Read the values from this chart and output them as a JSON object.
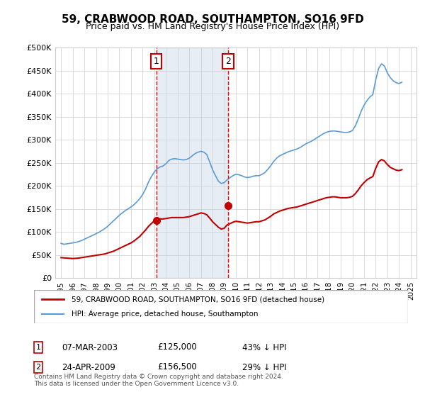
{
  "title": "59, CRABWOOD ROAD, SOUTHAMPTON, SO16 9FD",
  "subtitle": "Price paid vs. HM Land Registry's House Price Index (HPI)",
  "legend_line1": "59, CRABWOOD ROAD, SOUTHAMPTON, SO16 9FD (detached house)",
  "legend_line2": "HPI: Average price, detached house, Southampton",
  "footnote": "Contains HM Land Registry data © Crown copyright and database right 2024.\nThis data is licensed under the Open Government Licence v3.0.",
  "transaction1": {
    "label": "1",
    "date": "07-MAR-2003",
    "price": "£125,000",
    "pct": "43% ↓ HPI"
  },
  "transaction2": {
    "label": "2",
    "date": "24-APR-2009",
    "price": "£156,500",
    "pct": "29% ↓ HPI"
  },
  "hpi_color": "#5b9bd5",
  "price_color": "#c00000",
  "transaction_color": "#c00000",
  "marker1_x": 2003.18,
  "marker1_y": 125000,
  "marker2_x": 2009.32,
  "marker2_y": 156500,
  "vline1_x": 2003.18,
  "vline2_x": 2009.32,
  "shade1_xmin": 2003.18,
  "shade1_xmax": 2009.32,
  "ylim": [
    0,
    500000
  ],
  "xlim": [
    1994.5,
    2025.5
  ],
  "yticks": [
    0,
    50000,
    100000,
    150000,
    200000,
    250000,
    300000,
    350000,
    400000,
    450000,
    500000
  ],
  "ytick_labels": [
    "£0",
    "£50K",
    "£100K",
    "£150K",
    "£200K",
    "£250K",
    "£300K",
    "£350K",
    "£400K",
    "£450K",
    "£500K"
  ],
  "xticks": [
    1995,
    1996,
    1997,
    1998,
    1999,
    2000,
    2001,
    2002,
    2003,
    2004,
    2005,
    2006,
    2007,
    2008,
    2009,
    2010,
    2011,
    2012,
    2013,
    2014,
    2015,
    2016,
    2017,
    2018,
    2019,
    2020,
    2021,
    2022,
    2023,
    2024,
    2025
  ],
  "hpi_data": {
    "years": [
      1995,
      1995.25,
      1995.5,
      1995.75,
      1996,
      1996.25,
      1996.5,
      1996.75,
      1997,
      1997.25,
      1997.5,
      1997.75,
      1998,
      1998.25,
      1998.5,
      1998.75,
      1999,
      1999.25,
      1999.5,
      1999.75,
      2000,
      2000.25,
      2000.5,
      2000.75,
      2001,
      2001.25,
      2001.5,
      2001.75,
      2002,
      2002.25,
      2002.5,
      2002.75,
      2003,
      2003.25,
      2003.5,
      2003.75,
      2004,
      2004.25,
      2004.5,
      2004.75,
      2005,
      2005.25,
      2005.5,
      2005.75,
      2006,
      2006.25,
      2006.5,
      2006.75,
      2007,
      2007.25,
      2007.5,
      2007.75,
      2008,
      2008.25,
      2008.5,
      2008.75,
      2009,
      2009.25,
      2009.5,
      2009.75,
      2010,
      2010.25,
      2010.5,
      2010.75,
      2011,
      2011.25,
      2011.5,
      2011.75,
      2012,
      2012.25,
      2012.5,
      2012.75,
      2013,
      2013.25,
      2013.5,
      2013.75,
      2014,
      2014.25,
      2014.5,
      2014.75,
      2015,
      2015.25,
      2015.5,
      2015.75,
      2016,
      2016.25,
      2016.5,
      2016.75,
      2017,
      2017.25,
      2017.5,
      2017.75,
      2018,
      2018.25,
      2018.5,
      2018.75,
      2019,
      2019.25,
      2019.5,
      2019.75,
      2020,
      2020.25,
      2020.5,
      2020.75,
      2021,
      2021.25,
      2021.5,
      2021.75,
      2022,
      2022.25,
      2022.5,
      2022.75,
      2023,
      2023.25,
      2023.5,
      2023.75,
      2024,
      2024.25
    ],
    "values": [
      75000,
      73000,
      74000,
      75000,
      76000,
      77000,
      79000,
      81000,
      84000,
      87000,
      90000,
      93000,
      96000,
      99000,
      103000,
      107000,
      112000,
      118000,
      124000,
      130000,
      136000,
      141000,
      146000,
      150000,
      154000,
      159000,
      165000,
      172000,
      181000,
      193000,
      208000,
      220000,
      230000,
      237000,
      241000,
      243000,
      248000,
      255000,
      258000,
      259000,
      258000,
      257000,
      256000,
      257000,
      260000,
      265000,
      270000,
      273000,
      275000,
      273000,
      268000,
      252000,
      235000,
      222000,
      210000,
      205000,
      207000,
      213000,
      218000,
      222000,
      225000,
      224000,
      222000,
      219000,
      218000,
      219000,
      221000,
      222000,
      222000,
      225000,
      229000,
      236000,
      244000,
      253000,
      260000,
      265000,
      268000,
      271000,
      274000,
      276000,
      278000,
      280000,
      283000,
      287000,
      291000,
      294000,
      297000,
      301000,
      305000,
      309000,
      313000,
      316000,
      318000,
      319000,
      319000,
      318000,
      317000,
      316000,
      316000,
      317000,
      320000,
      330000,
      345000,
      362000,
      375000,
      385000,
      393000,
      398000,
      430000,
      455000,
      465000,
      460000,
      445000,
      435000,
      428000,
      424000,
      422000,
      425000
    ]
  },
  "price_data": {
    "years": [
      1995,
      1995.25,
      1995.5,
      1995.75,
      1996,
      1996.25,
      1996.5,
      1996.75,
      1997,
      1997.25,
      1997.5,
      1997.75,
      1998,
      1998.25,
      1998.5,
      1998.75,
      1999,
      1999.25,
      1999.5,
      1999.75,
      2000,
      2000.25,
      2000.5,
      2000.75,
      2001,
      2001.25,
      2001.5,
      2001.75,
      2002,
      2002.25,
      2002.5,
      2002.75,
      2003,
      2003.25,
      2003.5,
      2003.75,
      2004,
      2004.25,
      2004.5,
      2004.75,
      2005,
      2005.25,
      2005.5,
      2005.75,
      2006,
      2006.25,
      2006.5,
      2006.75,
      2007,
      2007.25,
      2007.5,
      2007.75,
      2008,
      2008.25,
      2008.5,
      2008.75,
      2009,
      2009.25,
      2009.5,
      2009.75,
      2010,
      2010.25,
      2010.5,
      2010.75,
      2011,
      2011.25,
      2011.5,
      2011.75,
      2012,
      2012.25,
      2012.5,
      2012.75,
      2013,
      2013.25,
      2013.5,
      2013.75,
      2014,
      2014.25,
      2014.5,
      2014.75,
      2015,
      2015.25,
      2015.5,
      2015.75,
      2016,
      2016.25,
      2016.5,
      2016.75,
      2017,
      2017.25,
      2017.5,
      2017.75,
      2018,
      2018.25,
      2018.5,
      2018.75,
      2019,
      2019.25,
      2019.5,
      2019.75,
      2020,
      2020.25,
      2020.5,
      2020.75,
      2021,
      2021.25,
      2021.5,
      2021.75,
      2022,
      2022.25,
      2022.5,
      2022.75,
      2023,
      2023.25,
      2023.5,
      2023.75,
      2024,
      2024.25
    ],
    "values": [
      44000,
      43500,
      43000,
      42500,
      42000,
      42500,
      43000,
      44000,
      45000,
      46000,
      47000,
      48000,
      49000,
      50000,
      51000,
      52000,
      54000,
      56000,
      58000,
      61000,
      64000,
      67000,
      70000,
      73000,
      76000,
      80000,
      85000,
      90000,
      97000,
      104000,
      112000,
      118000,
      124000,
      127000,
      128000,
      128000,
      129000,
      130000,
      131000,
      131000,
      131000,
      131000,
      131000,
      132000,
      133000,
      135000,
      137000,
      139000,
      141000,
      140000,
      137000,
      130000,
      122000,
      116000,
      110000,
      106000,
      108000,
      115000,
      118000,
      121000,
      123000,
      122000,
      121000,
      120000,
      119000,
      120000,
      121000,
      122000,
      122000,
      124000,
      126000,
      130000,
      134000,
      139000,
      142000,
      145000,
      147000,
      149000,
      151000,
      152000,
      153000,
      154000,
      156000,
      158000,
      160000,
      162000,
      164000,
      166000,
      168000,
      170000,
      172000,
      174000,
      175000,
      176000,
      176000,
      175000,
      174000,
      174000,
      174000,
      175000,
      177000,
      183000,
      191000,
      200000,
      207000,
      213000,
      217000,
      220000,
      238000,
      252000,
      257000,
      254000,
      246000,
      240000,
      237000,
      234000,
      233000,
      235000
    ]
  }
}
